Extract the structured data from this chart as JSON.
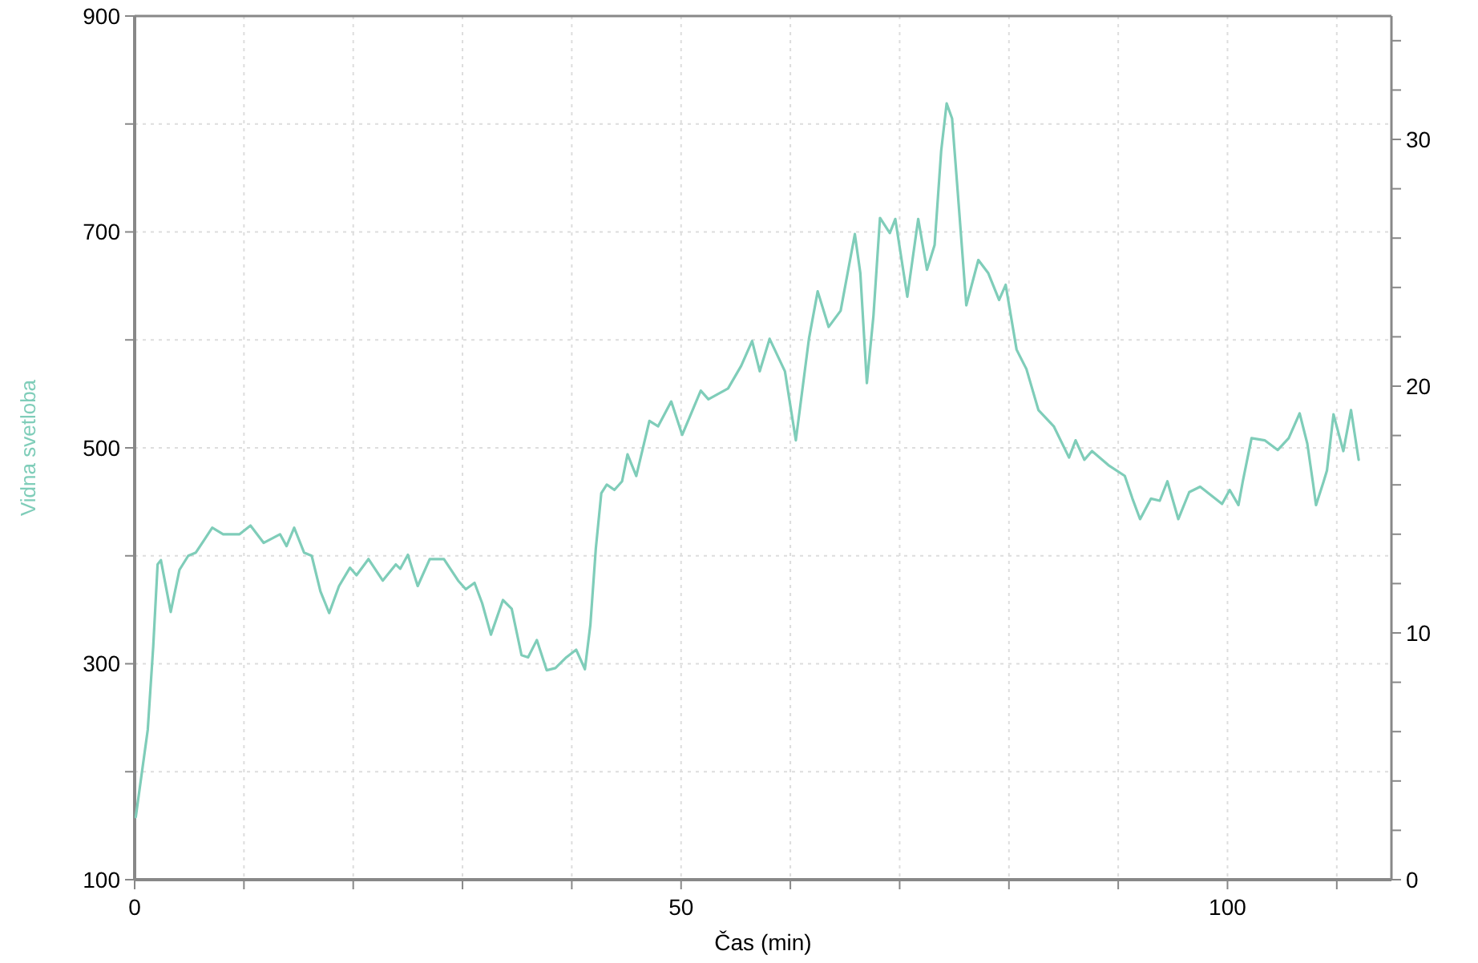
{
  "chart_data": {
    "type": "line",
    "xlabel": "Čas (min)",
    "ylabel": "Vidna svetloba",
    "xlim": [
      0,
      115
    ],
    "xticks": [
      0,
      {
        "value": 10,
        "label": null
      },
      {
        "value": 20,
        "label": null
      },
      {
        "value": 30,
        "label": null
      },
      {
        "value": 40,
        "label": null
      },
      50,
      {
        "value": 60,
        "label": null
      },
      {
        "value": 70,
        "label": null
      },
      {
        "value": 80,
        "label": null
      },
      {
        "value": 90,
        "label": null
      },
      100,
      {
        "value": 110,
        "label": null
      }
    ],
    "ylim": [
      100,
      900
    ],
    "yticks": [
      100,
      {
        "value": 200,
        "label": null
      },
      300,
      {
        "value": 400,
        "label": null
      },
      500,
      {
        "value": 600,
        "label": null
      },
      700,
      {
        "value": 800,
        "label": null
      },
      900
    ],
    "y2lim": [
      0,
      35
    ],
    "y2ticks": [
      0,
      {
        "value": 2,
        "label": null
      },
      {
        "value": 4,
        "label": null
      },
      {
        "value": 6,
        "label": null
      },
      {
        "value": 8,
        "label": null
      },
      10,
      {
        "value": 12,
        "label": null
      },
      {
        "value": 14,
        "label": null
      },
      {
        "value": 16,
        "label": null
      },
      {
        "value": 18,
        "label": null
      },
      20,
      {
        "value": 22,
        "label": null
      },
      {
        "value": 24,
        "label": null
      },
      {
        "value": 26,
        "label": null
      },
      {
        "value": 28,
        "label": null
      },
      30,
      {
        "value": 32,
        "label": null
      },
      {
        "value": 34,
        "label": null
      }
    ],
    "grid": true,
    "marker": "none",
    "line_style": "solid",
    "series": [
      {
        "color": "#7fcdb9",
        "x": [
          0.1,
          1.2,
          1.7,
          2.1,
          2.4,
          3.3,
          4.1,
          4.9,
          5.6,
          7.1,
          8.1,
          9.6,
          10.6,
          11.8,
          13.3,
          13.9,
          14.6,
          15.5,
          16.2,
          17.0,
          17.8,
          18.7,
          19.7,
          20.3,
          21.4,
          22.7,
          23.9,
          24.3,
          25.0,
          25.9,
          27.0,
          28.3,
          29.6,
          30.3,
          31.1,
          31.8,
          32.6,
          33.7,
          34.5,
          35.4,
          36.0,
          36.8,
          37.7,
          38.5,
          39.5,
          40.4,
          41.2,
          41.7,
          42.2,
          42.7,
          43.2,
          43.9,
          44.6,
          45.1,
          45.9,
          47.1,
          47.9,
          49.1,
          50.1,
          51.8,
          52.5,
          54.3,
          55.5,
          56.5,
          57.2,
          58.1,
          59.5,
          60.5,
          61.7,
          62.5,
          63.5,
          64.6,
          65.9,
          66.4,
          67.0,
          67.6,
          68.2,
          69.1,
          69.6,
          70.7,
          71.7,
          72.5,
          73.2,
          73.8,
          74.3,
          74.8,
          75.3,
          76.1,
          77.2,
          78.1,
          79.1,
          79.7,
          80.7,
          81.6,
          82.7,
          84.1,
          85.5,
          86.1,
          86.9,
          87.6,
          89.1,
          90.6,
          91.3,
          92.0,
          93.0,
          93.8,
          94.5,
          95.5,
          96.5,
          97.5,
          99.5,
          100.2,
          101.0,
          101.4,
          102.2,
          103.4,
          104.6,
          105.6,
          106.6,
          107.3,
          107.8,
          108.1,
          108.8,
          109.1,
          109.7,
          110.6,
          111.3,
          112.0
        ],
        "values": [
          158,
          239,
          316,
          392,
          396,
          348,
          387,
          400,
          403,
          426,
          420,
          420,
          428,
          412,
          420,
          409,
          426,
          403,
          400,
          367,
          347,
          372,
          389,
          382,
          397,
          377,
          392,
          388,
          401,
          372,
          397,
          397,
          377,
          369,
          375,
          356,
          327,
          359,
          351,
          308,
          306,
          322,
          294,
          296,
          306,
          313,
          295,
          336,
          407,
          458,
          466,
          461,
          469,
          494,
          474,
          525,
          520,
          543,
          512,
          553,
          545,
          555,
          576,
          599,
          571,
          601,
          571,
          507,
          601,
          645,
          612,
          627,
          698,
          662,
          560,
          622,
          713,
          699,
          712,
          640,
          712,
          665,
          688,
          775,
          819,
          805,
          739,
          632,
          674,
          662,
          637,
          651,
          591,
          573,
          535,
          520,
          491,
          507,
          489,
          497,
          484,
          474,
          453,
          434,
          453,
          451,
          469,
          434,
          459,
          464,
          448,
          461,
          447,
          469,
          509,
          507,
          498,
          509,
          532,
          504,
          469,
          447,
          469,
          479,
          531,
          497,
          535,
          489
        ]
      }
    ]
  }
}
